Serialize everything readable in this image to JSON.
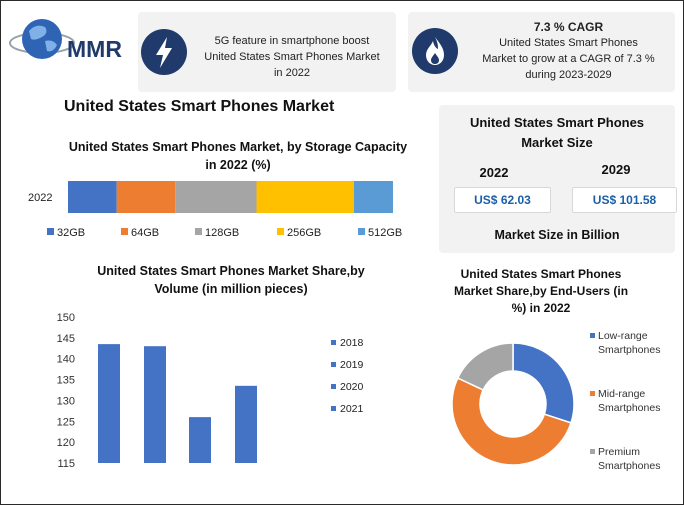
{
  "brand": {
    "logo_text": "MMR",
    "colors": {
      "navy": "#1f3a6b",
      "globe_blue": "#2f64b5"
    }
  },
  "feature_cards": [
    {
      "icon": "lightning-icon",
      "text_lines": [
        "5G feature in smartphone boost",
        "United States Smart Phones Market",
        "in 2022"
      ]
    },
    {
      "icon": "flame-icon",
      "heading": "7.3 % CAGR",
      "text_lines": [
        "United States Smart Phones",
        "Market to grow at a CAGR of 7.3 %",
        "during 2023-2029"
      ]
    }
  ],
  "main_title": "United States Smart Phones Market",
  "market_size": {
    "title_lines": [
      "United States Smart Phones",
      "Market Size"
    ],
    "years": [
      "2022",
      "2029"
    ],
    "values": [
      "US$ 62.03",
      "US$ 101.58"
    ],
    "footer": "Market Size in Billion"
  },
  "chart_data": [
    {
      "type": "bar",
      "orientation": "horizontal",
      "stacked": true,
      "title": "United States Smart Phones Market, by Storage Capacity in 2022 (%)",
      "title_lines": [
        "United States Smart Phones Market, by Storage Capacity",
        "in 2022 (%)"
      ],
      "categories": [
        "2022"
      ],
      "series": [
        {
          "name": "32GB",
          "values": [
            15
          ],
          "color": "#4472c4"
        },
        {
          "name": "64GB",
          "values": [
            18
          ],
          "color": "#ed7d31"
        },
        {
          "name": "128GB",
          "values": [
            25
          ],
          "color": "#a5a5a5"
        },
        {
          "name": "256GB",
          "values": [
            30
          ],
          "color": "#ffc000"
        },
        {
          "name": "512GB",
          "values": [
            12
          ],
          "color": "#5b9bd5"
        }
      ],
      "legend_position": "bottom"
    },
    {
      "type": "bar",
      "title": "United States Smart Phones Market Share,by Volume (in million pieces)",
      "title_lines": [
        "United States Smart Phones Market Share,by",
        "Volume (in million pieces)"
      ],
      "categories": [
        "2018",
        "2019",
        "2020",
        "2021"
      ],
      "values": [
        143.5,
        143,
        126,
        133.5
      ],
      "ylim": [
        115,
        150
      ],
      "yticks": [
        "150",
        "145",
        "140",
        "135",
        "130",
        "125",
        "120",
        "115"
      ],
      "legend": [
        "2018",
        "2019",
        "2020",
        "2021"
      ],
      "legend_position": "right",
      "color": "#4472c4"
    },
    {
      "type": "pie",
      "donut": true,
      "title": "United States Smart Phones Market Share,by End-Users (in %) in 2022",
      "title_lines": [
        "United States Smart Phones",
        "Market Share,by End-Users (in",
        "%) in 2022"
      ],
      "labels": [
        "Low-range Smartphones",
        "Mid-range Smartphones",
        "Premium Smartphones"
      ],
      "label_lines": [
        [
          "Low-range",
          "Smartphones"
        ],
        [
          "Mid-range",
          "Smartphones"
        ],
        [
          "Premium",
          "Smartphones"
        ]
      ],
      "values": [
        30,
        52,
        18
      ],
      "colors": [
        "#4472c4",
        "#ed7d31",
        "#a5a5a5"
      ],
      "legend_position": "right"
    }
  ]
}
